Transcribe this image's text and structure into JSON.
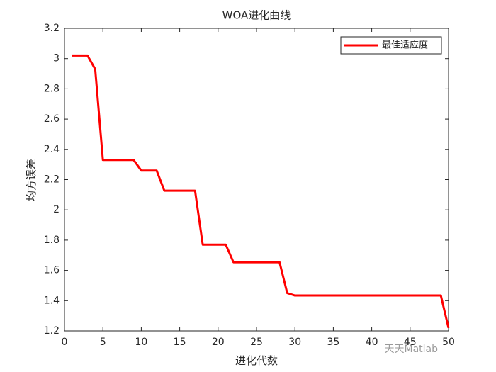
{
  "chart_data": {
    "type": "line",
    "title": "WOA进化曲线",
    "xlabel": "进化代数",
    "ylabel": "均方误差",
    "x": [
      1,
      2,
      3,
      4,
      5,
      6,
      7,
      8,
      9,
      10,
      11,
      12,
      13,
      14,
      15,
      16,
      17,
      18,
      19,
      20,
      21,
      22,
      23,
      24,
      25,
      26,
      27,
      28,
      29,
      30,
      31,
      32,
      33,
      34,
      35,
      36,
      37,
      38,
      39,
      40,
      41,
      42,
      43,
      44,
      45,
      46,
      47,
      48,
      49,
      50
    ],
    "series": [
      {
        "name": "最佳适应度",
        "color": "#ff0000",
        "values": [
          3.02,
          3.02,
          3.02,
          2.93,
          2.33,
          2.33,
          2.33,
          2.33,
          2.33,
          2.26,
          2.26,
          2.26,
          2.127,
          2.127,
          2.127,
          2.127,
          2.127,
          1.77,
          1.77,
          1.77,
          1.77,
          1.654,
          1.654,
          1.654,
          1.654,
          1.654,
          1.654,
          1.654,
          1.45,
          1.434,
          1.434,
          1.434,
          1.434,
          1.434,
          1.434,
          1.434,
          1.434,
          1.434,
          1.434,
          1.434,
          1.434,
          1.434,
          1.434,
          1.434,
          1.434,
          1.434,
          1.434,
          1.434,
          1.434,
          1.22
        ]
      }
    ],
    "xlim": [
      0,
      50
    ],
    "xticks": [
      0,
      5,
      10,
      15,
      20,
      25,
      30,
      35,
      40,
      45,
      50
    ],
    "ylim": [
      1.2,
      3.2
    ],
    "yticks": [
      1.2,
      1.4,
      1.6,
      1.8,
      2,
      2.2,
      2.4,
      2.6,
      2.8,
      3,
      3.2
    ],
    "legend": "upper-right",
    "watermark": "天天Matlab"
  }
}
